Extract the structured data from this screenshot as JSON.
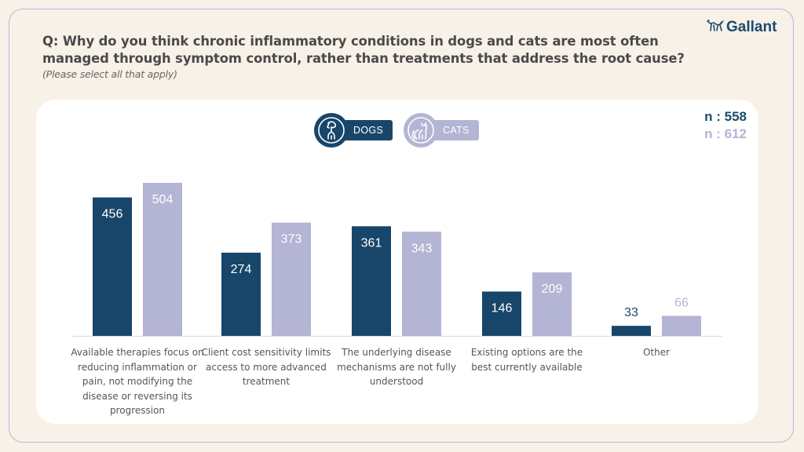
{
  "header": {
    "question": "Q: Why do you think chronic inflammatory conditions in dogs and cats are most often managed through symptom control, rather than treatments that address the root cause?",
    "note": "(Please select all that apply)",
    "brand": "Gallant"
  },
  "legend": {
    "dogs": {
      "label": "DOGS",
      "icon": "dog-icon"
    },
    "cats": {
      "label": "CATS",
      "icon": "cat-icon"
    }
  },
  "sample": {
    "dogs": "n : 558",
    "cats": "n : 612"
  },
  "colors": {
    "dogs": "#18466a",
    "cats": "#b4b4d4",
    "background": "#f8f1e8",
    "card": "#ffffff"
  },
  "chart_data": {
    "type": "bar",
    "title": "Q: Why do you think chronic inflammatory conditions in dogs and cats are most often managed through symptom control, rather than treatments that address the root cause?",
    "categories": [
      "Available therapies focus on reducing inflammation or pain, not modifying the disease or reversing its progression",
      "Client cost sensitivity limits access to more advanced treatment",
      "The underlying disease mechanisms are not fully understood",
      "Existing options are the best currently available",
      "Other"
    ],
    "series": [
      {
        "name": "DOGS",
        "n": 558,
        "values": [
          456,
          274,
          361,
          146,
          33
        ]
      },
      {
        "name": "CATS",
        "n": 612,
        "values": [
          504,
          373,
          343,
          209,
          66
        ]
      }
    ],
    "xlabel": "",
    "ylabel": "",
    "ylim": [
      0,
      504
    ],
    "grid": false,
    "legend_position": "top-center"
  }
}
